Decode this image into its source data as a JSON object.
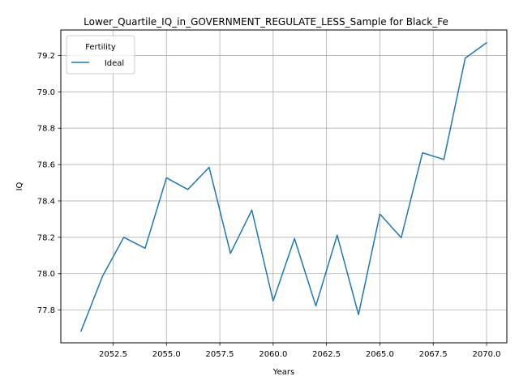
{
  "chart_data": {
    "type": "line",
    "title": "Lower_Quartile_IQ_in_GOVERNMENT_REGULATE_LESS_Sample for Black_Fe",
    "xlabel": "Years",
    "ylabel": "IQ",
    "xlim": [
      2050.05,
      2070.95
    ],
    "ylim": [
      77.62,
      79.34
    ],
    "x_ticks": [
      2052.5,
      2055.0,
      2057.5,
      2060.0,
      2062.5,
      2065.0,
      2067.5,
      2070.0
    ],
    "x_tick_labels": [
      "2052.5",
      "2055.0",
      "2057.5",
      "2060.0",
      "2062.5",
      "2065.0",
      "2067.5",
      "2070.0"
    ],
    "y_ticks": [
      77.8,
      78.0,
      78.2,
      78.4,
      78.6,
      78.8,
      79.0,
      79.2
    ],
    "y_tick_labels": [
      "77.8",
      "78.0",
      "78.2",
      "78.4",
      "78.6",
      "78.8",
      "79.0",
      "79.2"
    ],
    "grid": true,
    "legend": {
      "title": "Fertility",
      "placement": "upper-left"
    },
    "series": [
      {
        "name": "Ideal",
        "color": "#1f77b4",
        "x": [
          2051,
          2052,
          2053,
          2054,
          2055,
          2056,
          2057,
          2058,
          2059,
          2060,
          2061,
          2062,
          2063,
          2064,
          2065,
          2066,
          2067,
          2068,
          2069,
          2070
        ],
        "values": [
          77.685,
          77.985,
          78.2,
          78.14,
          78.527,
          78.463,
          78.585,
          78.112,
          78.35,
          77.85,
          78.193,
          77.823,
          78.212,
          77.775,
          78.328,
          78.198,
          78.665,
          78.628,
          79.185,
          79.27
        ]
      }
    ]
  }
}
